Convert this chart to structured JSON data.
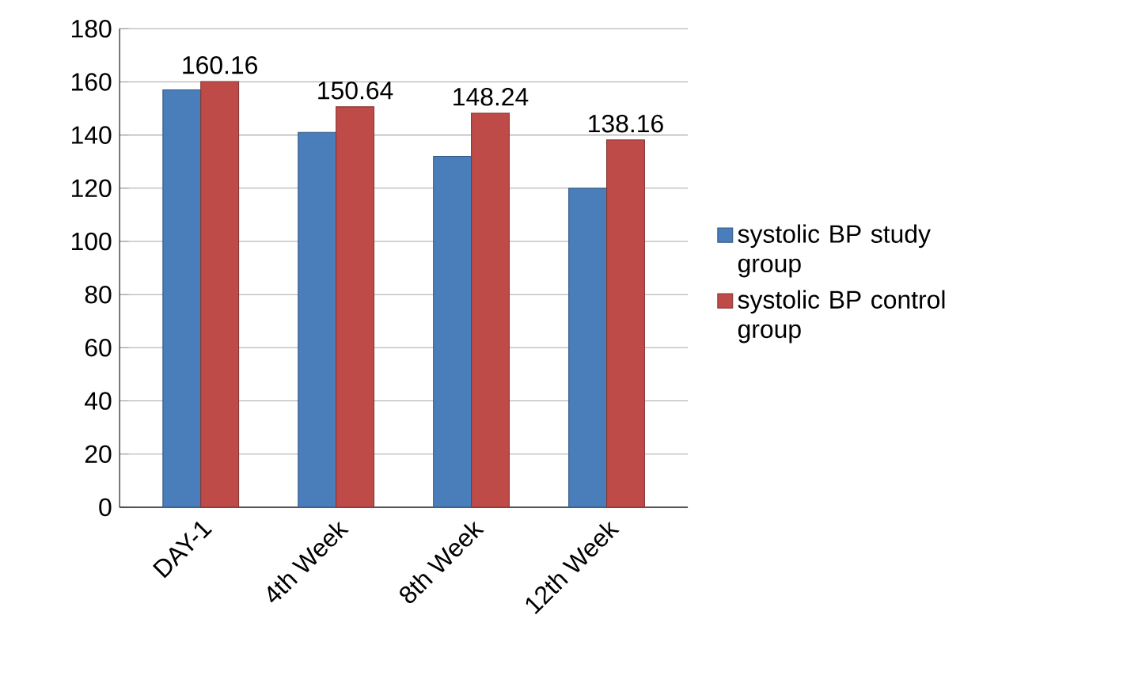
{
  "chart_data": {
    "type": "bar",
    "categories": [
      "DAY-1",
      "4th Week",
      "8th Week",
      "12th Week"
    ],
    "series": [
      {
        "name": "systolic BP study group",
        "color": "#4a7ebb",
        "values": [
          157,
          141,
          132,
          120
        ]
      },
      {
        "name": "systolic BP control group",
        "color": "#be4b48",
        "values": [
          160.16,
          150.64,
          148.24,
          138.16
        ],
        "value_labels": [
          "160.16",
          "150.64",
          "148.24",
          "138.16"
        ]
      }
    ],
    "ylim": [
      0,
      180
    ],
    "yticks": [
      0,
      20,
      40,
      60,
      80,
      100,
      120,
      140,
      160,
      180
    ],
    "grid": "y",
    "legend": "right"
  }
}
